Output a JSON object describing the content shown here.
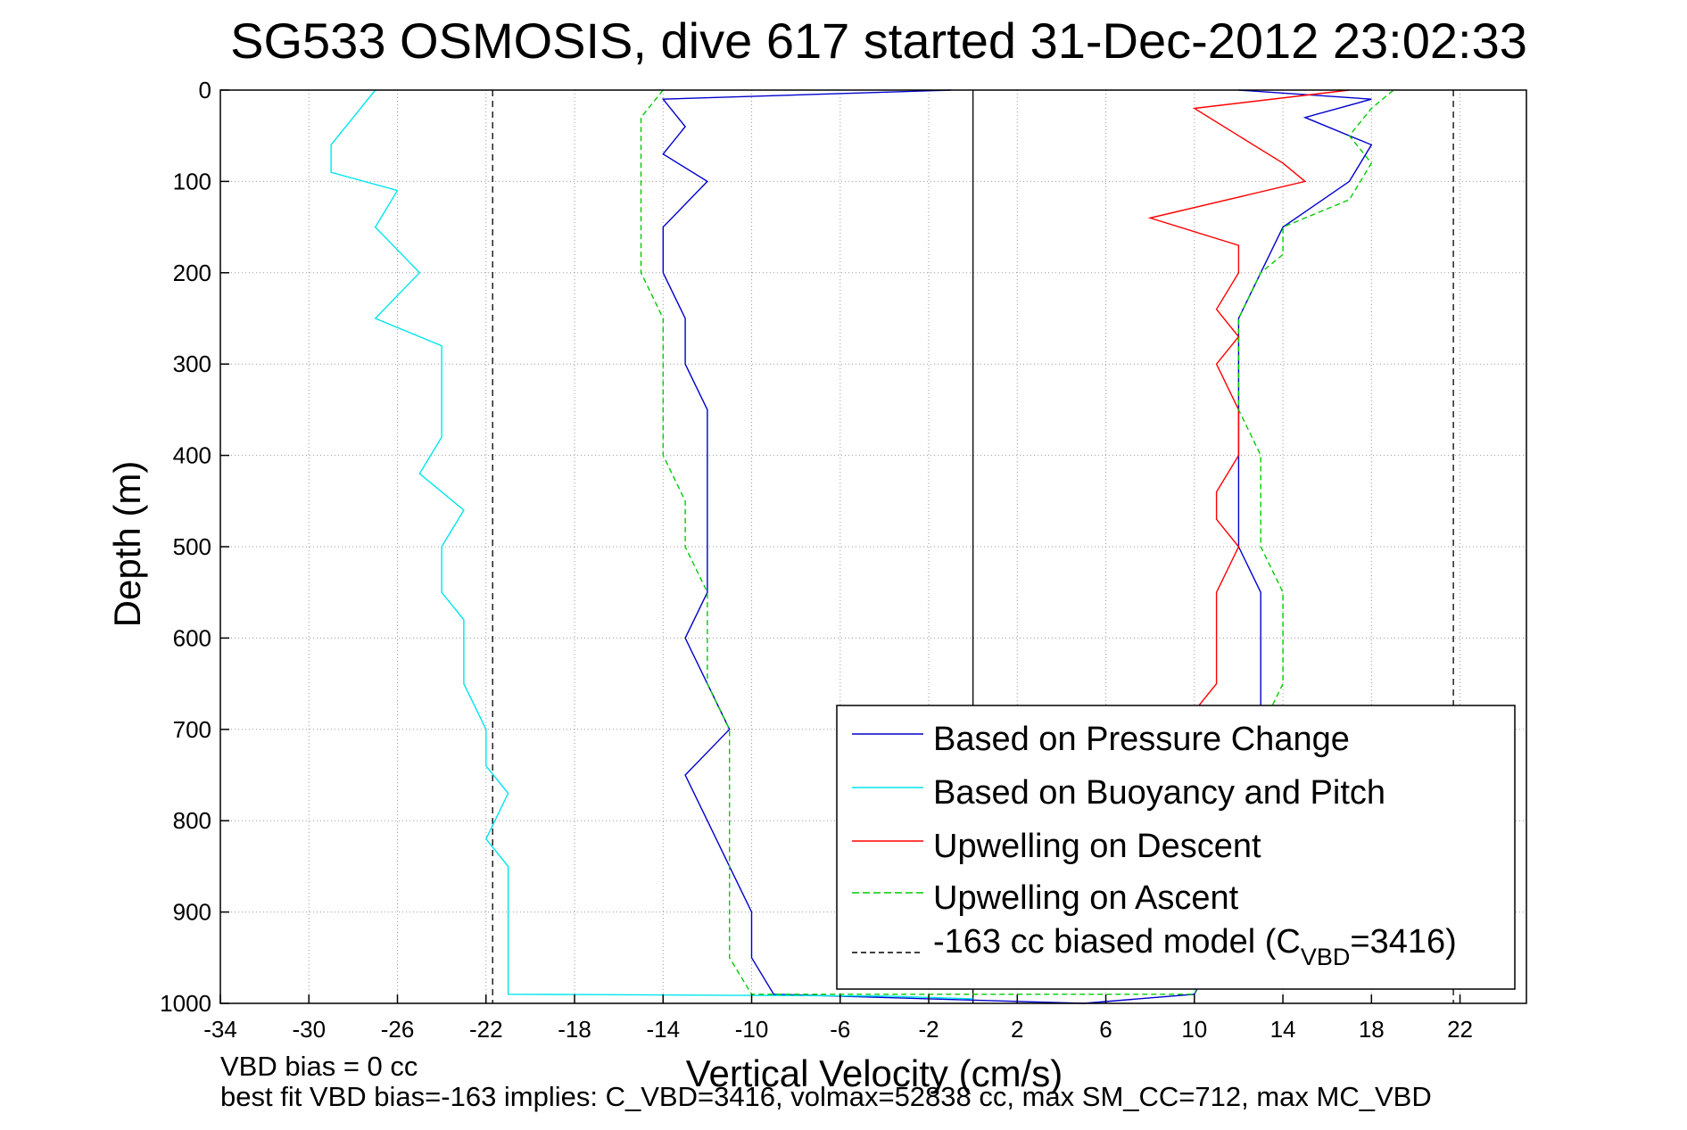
{
  "chart_data": {
    "type": "line",
    "title": "SG533 OSMOSIS, dive 617 started 31-Dec-2012 23:02:33",
    "xlabel": "Vertical Velocity (cm/s)",
    "ylabel": "Depth (m)",
    "xlim": [
      -34,
      25
    ],
    "ylim": [
      0,
      1000
    ],
    "y_reversed": true,
    "grid": "dotted",
    "x_ticks": [
      -34,
      -30,
      -26,
      -22,
      -18,
      -14,
      -10,
      -6,
      -2,
      2,
      6,
      10,
      14,
      18,
      22
    ],
    "y_ticks": [
      0,
      100,
      200,
      300,
      400,
      500,
      600,
      700,
      800,
      900,
      1000
    ],
    "legend_position": "lower-right",
    "legend": {
      "line1": "Based on Pressure Change",
      "line2": "Based on Buoyancy and Pitch",
      "line3": "Upwelling on Descent",
      "line4": "Upwelling on Ascent",
      "line5_main": "-163 cc biased model (C",
      "line5_sub": "VBD",
      "line5_tail": "=3416)"
    },
    "reference_lines": [
      {
        "x": 0,
        "style": "solid",
        "color": "#000000"
      },
      {
        "x": -21.7,
        "style": "dashed",
        "color": "#000000"
      },
      {
        "x": 21.7,
        "style": "dashed",
        "color": "#000000"
      }
    ],
    "series": [
      {
        "name": "Based on Pressure Change",
        "color": "#0000cc",
        "style": "solid",
        "points": [
          [
            -1,
            0
          ],
          [
            -14,
            10
          ],
          [
            -13,
            40
          ],
          [
            -14,
            70
          ],
          [
            -12,
            100
          ],
          [
            -14,
            150
          ],
          [
            -14,
            200
          ],
          [
            -13,
            250
          ],
          [
            -13,
            300
          ],
          [
            -12,
            350
          ],
          [
            -12,
            400
          ],
          [
            -12,
            450
          ],
          [
            -12,
            500
          ],
          [
            -12,
            550
          ],
          [
            -13,
            600
          ],
          [
            -12,
            650
          ],
          [
            -11,
            700
          ],
          [
            -13,
            750
          ],
          [
            -12,
            800
          ],
          [
            -11,
            850
          ],
          [
            -10,
            900
          ],
          [
            -10,
            950
          ],
          [
            -9,
            990
          ],
          [
            -2,
            995
          ],
          [
            5,
            1000
          ],
          [
            10,
            990
          ],
          [
            12,
            900
          ],
          [
            13,
            800
          ],
          [
            13,
            700
          ],
          [
            13,
            650
          ],
          [
            13,
            600
          ],
          [
            13,
            550
          ],
          [
            12,
            500
          ],
          [
            12,
            450
          ],
          [
            12,
            400
          ],
          [
            12,
            350
          ],
          [
            12,
            300
          ],
          [
            12,
            250
          ],
          [
            13,
            200
          ],
          [
            14,
            150
          ],
          [
            17,
            100
          ],
          [
            18,
            60
          ],
          [
            15,
            30
          ],
          [
            18,
            10
          ],
          [
            12,
            0
          ]
        ]
      },
      {
        "name": "Based on Buoyancy and Pitch",
        "color": "#00e5ee",
        "style": "solid",
        "points": [
          [
            -27,
            0
          ],
          [
            -28,
            30
          ],
          [
            -29,
            60
          ],
          [
            -29,
            90
          ],
          [
            -26,
            110
          ],
          [
            -27,
            150
          ],
          [
            -26,
            175
          ],
          [
            -25,
            200
          ],
          [
            -27,
            250
          ],
          [
            -24,
            280
          ],
          [
            -24,
            310
          ],
          [
            -24,
            340
          ],
          [
            -24,
            380
          ],
          [
            -25,
            420
          ],
          [
            -23,
            460
          ],
          [
            -24,
            500
          ],
          [
            -24,
            550
          ],
          [
            -23,
            580
          ],
          [
            -23,
            620
          ],
          [
            -23,
            650
          ],
          [
            -22,
            700
          ],
          [
            -22,
            740
          ],
          [
            -21,
            770
          ],
          [
            -22,
            820
          ],
          [
            -21,
            850
          ],
          [
            -21,
            900
          ],
          [
            -21,
            940
          ],
          [
            -21,
            990
          ],
          [
            -4,
            992
          ],
          [
            0,
            995
          ]
        ]
      },
      {
        "name": "Upwelling on Descent",
        "color": "#ff0000",
        "style": "solid",
        "points": [
          [
            17,
            0
          ],
          [
            10,
            20
          ],
          [
            12,
            50
          ],
          [
            14,
            80
          ],
          [
            15,
            100
          ],
          [
            8,
            140
          ],
          [
            12,
            170
          ],
          [
            12,
            200
          ],
          [
            11,
            240
          ],
          [
            12,
            270
          ],
          [
            11,
            300
          ],
          [
            12,
            350
          ],
          [
            12,
            400
          ],
          [
            11,
            440
          ],
          [
            11,
            470
          ],
          [
            12,
            500
          ],
          [
            11,
            550
          ],
          [
            11,
            600
          ],
          [
            11,
            650
          ],
          [
            10,
            680
          ]
        ]
      },
      {
        "name": "Upwelling on Ascent",
        "color": "#00cc00",
        "style": "dashed",
        "points": [
          [
            -14,
            0
          ],
          [
            -15,
            30
          ],
          [
            -15,
            70
          ],
          [
            -15,
            100
          ],
          [
            -15,
            150
          ],
          [
            -15,
            200
          ],
          [
            -14,
            250
          ],
          [
            -14,
            300
          ],
          [
            -14,
            350
          ],
          [
            -14,
            400
          ],
          [
            -13,
            450
          ],
          [
            -13,
            500
          ],
          [
            -12,
            550
          ],
          [
            -12,
            600
          ],
          [
            -12,
            650
          ],
          [
            -11,
            700
          ],
          [
            -11,
            750
          ],
          [
            -11,
            800
          ],
          [
            -11,
            850
          ],
          [
            -11,
            900
          ],
          [
            -11,
            950
          ],
          [
            -10,
            990
          ],
          [
            10,
            990
          ],
          [
            13,
            800
          ],
          [
            13,
            700
          ],
          [
            14,
            650
          ],
          [
            14,
            600
          ],
          [
            14,
            550
          ],
          [
            13,
            500
          ],
          [
            13,
            450
          ],
          [
            13,
            400
          ],
          [
            12,
            350
          ],
          [
            12,
            300
          ],
          [
            12,
            250
          ],
          [
            13,
            200
          ],
          [
            14,
            180
          ],
          [
            14,
            150
          ],
          [
            17,
            120
          ],
          [
            18,
            80
          ],
          [
            17,
            50
          ],
          [
            18,
            20
          ],
          [
            19,
            0
          ]
        ]
      },
      {
        "name": "-163 cc biased model",
        "color": "#000000",
        "style": "dashed",
        "points": []
      }
    ]
  },
  "footer": {
    "line1": "VBD bias = 0 cc",
    "line2": "best fit VBD bias=-163 implies: C_VBD=3416, volmax=52838 cc, max SM_CC=712, max MC_VBD"
  }
}
